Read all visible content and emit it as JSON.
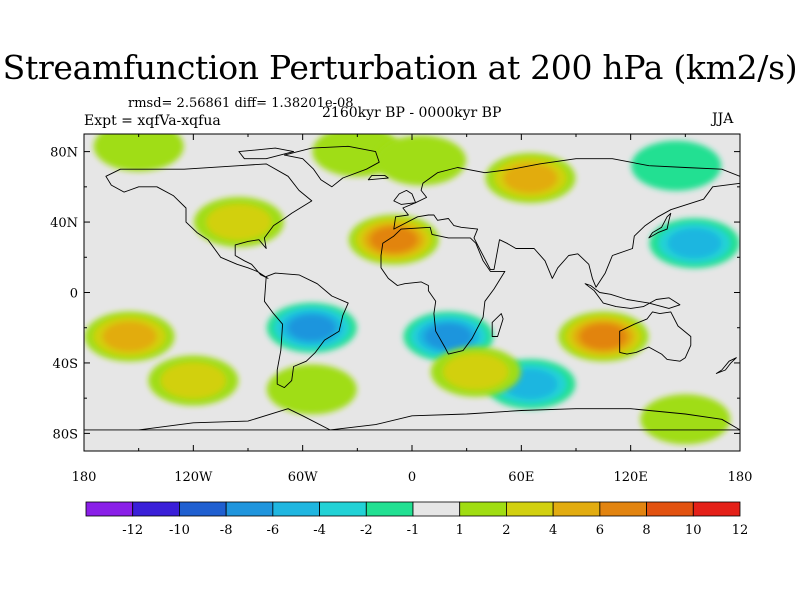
{
  "title": "Streamfunction Perturbation at 200 hPa (km2/s)",
  "stats_text": "rmsd= 2.56861 diff= 1.38201e-08",
  "experiment_text": "Expt = xqfVa-xqfua",
  "period_text": "2160kyr BP - 0000kyr BP",
  "season_text": "JJA",
  "lat_labels": [
    {
      "text": "80N",
      "lat": 80
    },
    {
      "text": "40N",
      "lat": 40
    },
    {
      "text": "0",
      "lat": 0
    },
    {
      "text": "40S",
      "lat": -40
    },
    {
      "text": "80S",
      "lat": -80
    }
  ],
  "lon_labels": [
    {
      "text": "180",
      "lon": -180
    },
    {
      "text": "120W",
      "lon": -120
    },
    {
      "text": "60W",
      "lon": -60
    },
    {
      "text": "0",
      "lon": 0
    },
    {
      "text": "60E",
      "lon": 60
    },
    {
      "text": "120E",
      "lon": 120
    },
    {
      "text": "180",
      "lon": 180
    }
  ],
  "colorbar": {
    "labels": [
      "-12",
      "-10",
      "-8",
      "-6",
      "-4",
      "-2",
      "-1",
      "1",
      "2",
      "4",
      "6",
      "8",
      "10",
      "12"
    ],
    "colors": [
      "#8a1fe8",
      "#3a1fd8",
      "#1f5fd0",
      "#1f95dd",
      "#1fb6e0",
      "#22d2d6",
      "#22e092",
      "#e6e6e6",
      "#a0dd12",
      "#d2d010",
      "#e2ac10",
      "#e28410",
      "#e25210",
      "#e42018"
    ]
  },
  "colors": {
    "land_outline": "#000000",
    "zero_band": "#e6e6e6"
  },
  "chart_data": {
    "type": "heatmap",
    "title": "Streamfunction Perturbation at 200 hPa (km2/s)",
    "variable": "streamfunction perturbation",
    "level_hpa": 200,
    "units": "km2/s",
    "season": "JJA",
    "xlim": [
      -180,
      180
    ],
    "ylim": [
      -90,
      90
    ],
    "contour_levels": [
      -12,
      -10,
      -8,
      -6,
      -4,
      -2,
      -1,
      1,
      2,
      4,
      6,
      8,
      10,
      12
    ],
    "features": [
      {
        "lon": -150,
        "lat": 83,
        "value": 2
      },
      {
        "lon": -30,
        "lat": 80,
        "value": 2
      },
      {
        "lon": 5,
        "lat": 75,
        "value": 2
      },
      {
        "lon": 65,
        "lat": 65,
        "value": 6
      },
      {
        "lon": 145,
        "lat": 72,
        "value": -1.5
      },
      {
        "lon": -95,
        "lat": 40,
        "value": 4
      },
      {
        "lon": -10,
        "lat": 30,
        "value": 8
      },
      {
        "lon": 155,
        "lat": 28,
        "value": -6
      },
      {
        "lon": -155,
        "lat": -25,
        "value": 6
      },
      {
        "lon": -55,
        "lat": -20,
        "value": -7
      },
      {
        "lon": 20,
        "lat": -25,
        "value": -7
      },
      {
        "lon": 105,
        "lat": -25,
        "value": 8
      },
      {
        "lon": -120,
        "lat": -50,
        "value": 4
      },
      {
        "lon": 65,
        "lat": -52,
        "value": -5
      },
      {
        "lon": 35,
        "lat": -45,
        "value": 4
      },
      {
        "lon": -55,
        "lat": -55,
        "value": 2
      },
      {
        "lon": 150,
        "lat": -72,
        "value": 2
      }
    ]
  }
}
